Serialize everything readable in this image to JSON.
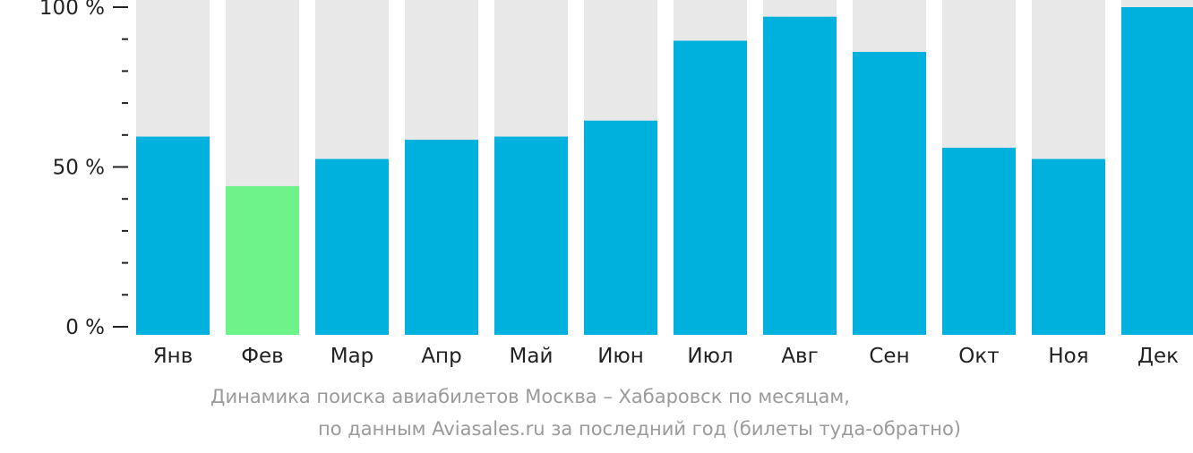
{
  "chart_data": {
    "type": "bar",
    "categories": [
      "Янв",
      "Фев",
      "Мар",
      "Апр",
      "Май",
      "Июн",
      "Июл",
      "Авг",
      "Сен",
      "Окт",
      "Ноя",
      "Дек"
    ],
    "values": [
      59.5,
      44,
      52.5,
      58.5,
      59.5,
      64.5,
      89.5,
      97,
      86,
      56,
      52.5,
      100
    ],
    "highlight_index": 1,
    "ylim": [
      0,
      100
    ],
    "y_ticks": [
      {
        "value": 0,
        "label": "0 %"
      },
      {
        "value": 50,
        "label": "50 %"
      },
      {
        "value": 100,
        "label": "100 %"
      }
    ],
    "y_minor_ticks": [
      10,
      20,
      30,
      40,
      60,
      70,
      80,
      90
    ],
    "colors": {
      "bar": "#00b0dd",
      "highlight": "#6ef38a",
      "background_bar": "#e8e8e8",
      "axis": "#222222",
      "tick_label": "#222222"
    },
    "grid": false,
    "legend": "none",
    "caption_line_1": "Динамика поиска авиабилетов Москва – Хабаровск по месяцам,",
    "caption_line_2": "по данным Aviasales.ru за последний год (билеты туда-обратно)"
  }
}
